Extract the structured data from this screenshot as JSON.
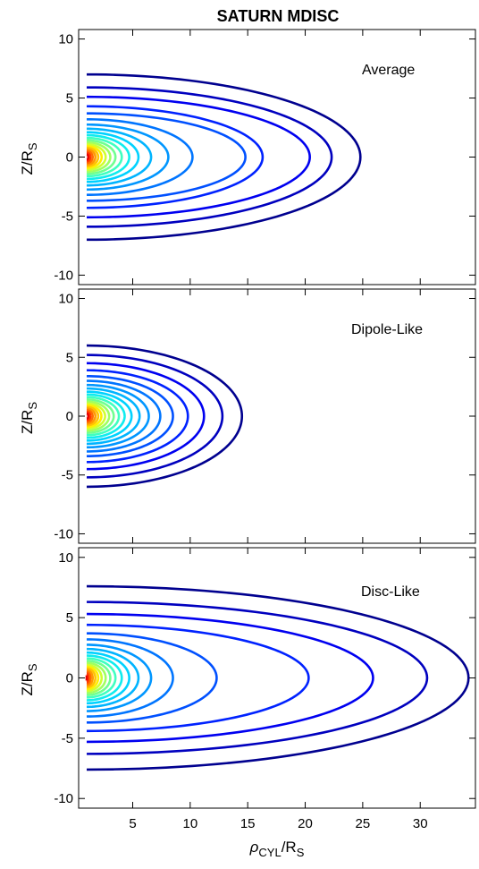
{
  "title": "SATURN MDISC",
  "chart_data": [
    {
      "type": "line",
      "panel_label": "Average",
      "ylabel": "Z/R",
      "ylabel_sub": "S",
      "xlim": [
        0.3,
        34.8
      ],
      "ylim": [
        -10.8,
        10.8
      ],
      "yticks": [
        -10,
        -5,
        0,
        5,
        10
      ],
      "ytick_labels": [
        "-10",
        "-5",
        "0",
        "5",
        "10"
      ],
      "xticks": [
        5,
        10,
        15,
        20,
        25,
        30
      ],
      "contours": [
        {
          "x_max": 24.8,
          "z_half": 7.0,
          "color": "#00008f"
        },
        {
          "x_max": 22.3,
          "z_half": 5.9,
          "color": "#0000bf"
        },
        {
          "x_max": 20.4,
          "z_half": 5.1,
          "color": "#0000f0"
        },
        {
          "x_max": 16.3,
          "z_half": 4.3,
          "color": "#0022ff"
        },
        {
          "x_max": 14.8,
          "z_half": 3.7,
          "color": "#0050ff"
        },
        {
          "x_max": 10.2,
          "z_half": 3.2,
          "color": "#0075ff"
        },
        {
          "x_max": 8.1,
          "z_half": 2.75,
          "color": "#0096ff"
        },
        {
          "x_max": 6.6,
          "z_half": 2.4,
          "color": "#00b4ff"
        },
        {
          "x_max": 5.5,
          "z_half": 2.1,
          "color": "#00d2ff"
        },
        {
          "x_max": 4.7,
          "z_half": 1.85,
          "color": "#10ecee"
        },
        {
          "x_max": 4.05,
          "z_half": 1.62,
          "color": "#40ffc0"
        },
        {
          "x_max": 3.5,
          "z_half": 1.42,
          "color": "#70ff90"
        },
        {
          "x_max": 3.05,
          "z_half": 1.24,
          "color": "#a0ff60"
        },
        {
          "x_max": 2.65,
          "z_half": 1.07,
          "color": "#d0ff30"
        },
        {
          "x_max": 2.3,
          "z_half": 0.92,
          "color": "#ffee00"
        },
        {
          "x_max": 2.0,
          "z_half": 0.78,
          "color": "#ffc400"
        },
        {
          "x_max": 1.75,
          "z_half": 0.64,
          "color": "#ff9a00"
        },
        {
          "x_max": 1.52,
          "z_half": 0.5,
          "color": "#ff6c00"
        },
        {
          "x_max": 1.32,
          "z_half": 0.36,
          "color": "#ff3800"
        },
        {
          "x_max": 1.14,
          "z_half": 0.22,
          "color": "#e80000"
        }
      ]
    },
    {
      "type": "line",
      "panel_label": "Dipole-Like",
      "ylabel": "Z/R",
      "ylabel_sub": "S",
      "xlim": [
        0.3,
        34.8
      ],
      "ylim": [
        -10.8,
        10.8
      ],
      "yticks": [
        -10,
        -5,
        0,
        5,
        10
      ],
      "ytick_labels": [
        "-10",
        "-5",
        "0",
        "5",
        "10"
      ],
      "xticks": [
        5,
        10,
        15,
        20,
        25,
        30
      ],
      "contours": [
        {
          "x_max": 14.5,
          "z_half": 6.0,
          "color": "#00008f"
        },
        {
          "x_max": 12.8,
          "z_half": 5.2,
          "color": "#0000bf"
        },
        {
          "x_max": 11.2,
          "z_half": 4.5,
          "color": "#0000f0"
        },
        {
          "x_max": 9.8,
          "z_half": 3.9,
          "color": "#0022ff"
        },
        {
          "x_max": 8.5,
          "z_half": 3.4,
          "color": "#0050ff"
        },
        {
          "x_max": 7.4,
          "z_half": 3.0,
          "color": "#0075ff"
        },
        {
          "x_max": 6.4,
          "z_half": 2.65,
          "color": "#0096ff"
        },
        {
          "x_max": 5.6,
          "z_half": 2.35,
          "color": "#00b4ff"
        },
        {
          "x_max": 4.9,
          "z_half": 2.08,
          "color": "#00d2ff"
        },
        {
          "x_max": 4.3,
          "z_half": 1.84,
          "color": "#10ecee"
        },
        {
          "x_max": 3.8,
          "z_half": 1.62,
          "color": "#40ffc0"
        },
        {
          "x_max": 3.35,
          "z_half": 1.42,
          "color": "#70ff90"
        },
        {
          "x_max": 2.95,
          "z_half": 1.24,
          "color": "#a0ff60"
        },
        {
          "x_max": 2.6,
          "z_half": 1.07,
          "color": "#d0ff30"
        },
        {
          "x_max": 2.28,
          "z_half": 0.92,
          "color": "#ffee00"
        },
        {
          "x_max": 2.0,
          "z_half": 0.78,
          "color": "#ffc400"
        },
        {
          "x_max": 1.75,
          "z_half": 0.64,
          "color": "#ff9a00"
        },
        {
          "x_max": 1.52,
          "z_half": 0.5,
          "color": "#ff6c00"
        },
        {
          "x_max": 1.32,
          "z_half": 0.36,
          "color": "#ff3800"
        },
        {
          "x_max": 1.14,
          "z_half": 0.22,
          "color": "#e80000"
        }
      ]
    },
    {
      "type": "line",
      "panel_label": "Disc-Like",
      "ylabel": "Z/R",
      "ylabel_sub": "S",
      "xlabel": "ρ",
      "xlabel_sub": "CYL",
      "xlabel_tail": "/R",
      "xlabel_sub2": "S",
      "xlim": [
        0.3,
        34.8
      ],
      "ylim": [
        -10.8,
        10.8
      ],
      "yticks": [
        -10,
        -5,
        0,
        5,
        10
      ],
      "ytick_labels": [
        "-10",
        "-5",
        "0",
        "5",
        "10"
      ],
      "xticks": [
        5,
        10,
        15,
        20,
        25,
        30
      ],
      "xtick_labels": [
        "5",
        "10",
        "15",
        "20",
        "25",
        "30"
      ],
      "contours": [
        {
          "x_max": 34.2,
          "z_half": 7.6,
          "color": "#00008f"
        },
        {
          "x_max": 30.6,
          "z_half": 6.3,
          "color": "#0000bf"
        },
        {
          "x_max": 25.9,
          "z_half": 5.3,
          "color": "#0000f0"
        },
        {
          "x_max": 20.3,
          "z_half": 4.4,
          "color": "#0022ff"
        },
        {
          "x_max": 12.3,
          "z_half": 3.7,
          "color": "#0050ff"
        },
        {
          "x_max": 8.5,
          "z_half": 3.2,
          "color": "#0075ff"
        },
        {
          "x_max": 6.6,
          "z_half": 2.75,
          "color": "#0096ff"
        },
        {
          "x_max": 5.5,
          "z_half": 2.4,
          "color": "#00b4ff"
        },
        {
          "x_max": 4.7,
          "z_half": 2.1,
          "color": "#00d2ff"
        },
        {
          "x_max": 4.05,
          "z_half": 1.85,
          "color": "#10ecee"
        },
        {
          "x_max": 3.5,
          "z_half": 1.62,
          "color": "#40ffc0"
        },
        {
          "x_max": 3.05,
          "z_half": 1.42,
          "color": "#70ff90"
        },
        {
          "x_max": 2.65,
          "z_half": 1.24,
          "color": "#a0ff60"
        },
        {
          "x_max": 2.3,
          "z_half": 1.07,
          "color": "#d0ff30"
        },
        {
          "x_max": 2.0,
          "z_half": 0.92,
          "color": "#ffee00"
        },
        {
          "x_max": 1.75,
          "z_half": 0.78,
          "color": "#ffc400"
        },
        {
          "x_max": 1.52,
          "z_half": 0.64,
          "color": "#ff9a00"
        },
        {
          "x_max": 1.32,
          "z_half": 0.5,
          "color": "#ff6c00"
        },
        {
          "x_max": 1.14,
          "z_half": 0.36,
          "color": "#ff3800"
        },
        {
          "x_max": 1.0,
          "z_half": 0.22,
          "color": "#e80000"
        }
      ]
    }
  ]
}
